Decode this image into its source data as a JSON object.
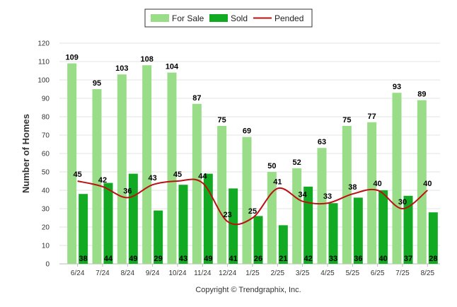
{
  "chart_data": {
    "type": "bar",
    "categories": [
      "6/24",
      "7/24",
      "8/24",
      "9/24",
      "10/24",
      "11/24",
      "12/24",
      "1/25",
      "2/25",
      "3/25",
      "4/25",
      "5/25",
      "6/25",
      "7/25",
      "8/25"
    ],
    "series": [
      {
        "name": "For Sale",
        "type": "bar",
        "color": "#99dd88",
        "values": [
          109,
          95,
          103,
          108,
          104,
          87,
          75,
          69,
          50,
          52,
          63,
          75,
          77,
          93,
          89
        ]
      },
      {
        "name": "Sold",
        "type": "bar",
        "color": "#11aa22",
        "values": [
          38,
          44,
          49,
          29,
          43,
          49,
          41,
          26,
          21,
          42,
          33,
          36,
          40,
          37,
          28
        ]
      },
      {
        "name": "Pended",
        "type": "line",
        "color": "#bb1111",
        "values": [
          45,
          42,
          36,
          43,
          45,
          44,
          23,
          25,
          41,
          34,
          33,
          38,
          40,
          30,
          40
        ]
      }
    ],
    "ylabel": "Number of Homes",
    "ylim": [
      0,
      120
    ],
    "yticks": [
      0,
      10,
      20,
      30,
      40,
      50,
      60,
      70,
      80,
      90,
      100,
      110,
      120
    ],
    "grid": true,
    "legend_position": "top-center"
  },
  "footer": {
    "copyright": "Copyright © Trendgraphix, Inc."
  }
}
